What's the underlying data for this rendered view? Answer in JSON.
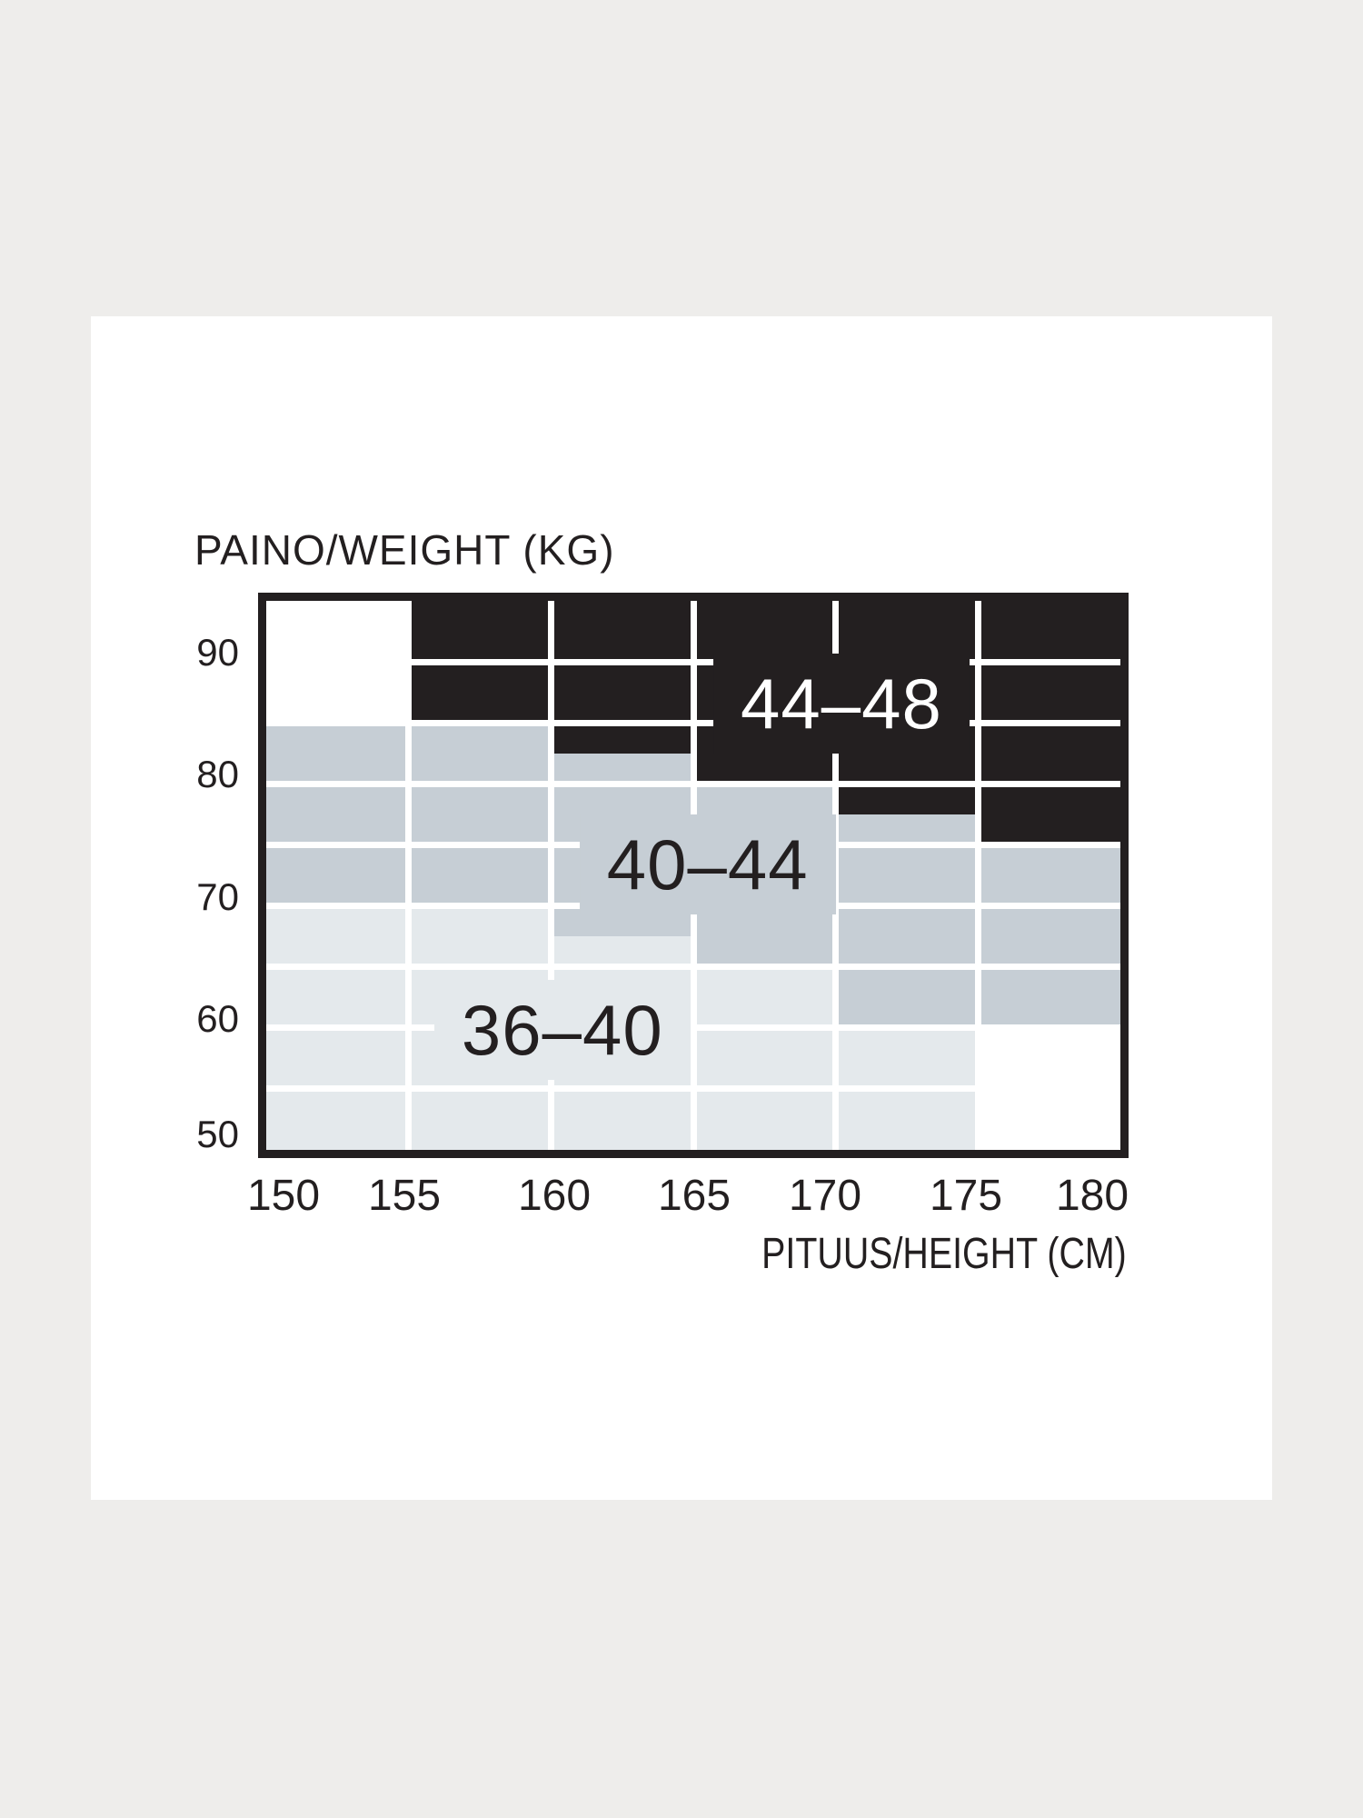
{
  "page": {
    "background_color": "#eeedeb",
    "card_color": "#ffffff"
  },
  "chart_data": {
    "type": "heatmap",
    "description": "Hosiery size chart: zones of size ranges over height (cm) and weight (kg)",
    "frame_color": "#231f20",
    "grid": {
      "show": true,
      "color": "#ffffff",
      "x_lines_cm": [
        155,
        160,
        165,
        170,
        175
      ],
      "y_lines_kg": [
        90,
        85,
        80,
        75,
        70,
        65,
        60,
        55
      ]
    },
    "x_axis": {
      "title": "PITUUS/HEIGHT (CM)",
      "ticks": [
        "150",
        "155",
        "160",
        "165",
        "170",
        "175",
        "180"
      ],
      "range": [
        150,
        180
      ]
    },
    "y_axis": {
      "title": "PAINO/WEIGHT (KG)",
      "ticks": [
        "90",
        "80",
        "70",
        "60",
        "50"
      ],
      "range": [
        50,
        95
      ]
    },
    "zones": [
      {
        "label": "36–40",
        "fill": "#e4e9ec",
        "text_color": "#231f20",
        "label_at": {
          "cm": 160.4,
          "kg": 59.8
        },
        "steps": [
          {
            "cm_from": 150,
            "cm_to": 155,
            "kg_from": 50,
            "kg_to": 70
          },
          {
            "cm_from": 155,
            "cm_to": 160,
            "kg_from": 50,
            "kg_to": 70
          },
          {
            "cm_from": 160,
            "cm_to": 165,
            "kg_from": 50,
            "kg_to": 67.5
          },
          {
            "cm_from": 165,
            "cm_to": 170,
            "kg_from": 50,
            "kg_to": 65
          },
          {
            "cm_from": 170,
            "cm_to": 175,
            "kg_from": 50,
            "kg_to": 60
          }
        ]
      },
      {
        "label": "40–44",
        "fill": "#c6ced5",
        "text_color": "#231f20",
        "label_at": {
          "cm": 165.5,
          "kg": 73.4
        },
        "steps": [
          {
            "cm_from": 150,
            "cm_to": 155,
            "kg_from": 70,
            "kg_to": 85
          },
          {
            "cm_from": 155,
            "cm_to": 160,
            "kg_from": 70,
            "kg_to": 85
          },
          {
            "cm_from": 160,
            "cm_to": 165,
            "kg_from": 67.5,
            "kg_to": 82.5
          },
          {
            "cm_from": 165,
            "cm_to": 170,
            "kg_from": 65,
            "kg_to": 80
          },
          {
            "cm_from": 170,
            "cm_to": 175,
            "kg_from": 60,
            "kg_to": 77.5
          },
          {
            "cm_from": 175,
            "cm_to": 180,
            "kg_from": 60,
            "kg_to": 75
          }
        ]
      },
      {
        "label": "44–48",
        "fill": "#231f20",
        "text_color": "#ffffff",
        "label_at": {
          "cm": 170.2,
          "kg": 86.6
        },
        "steps": [
          {
            "cm_from": 155,
            "cm_to": 160,
            "kg_from": 85,
            "kg_to": 95
          },
          {
            "cm_from": 160,
            "cm_to": 165,
            "kg_from": 82.5,
            "kg_to": 95
          },
          {
            "cm_from": 165,
            "cm_to": 170,
            "kg_from": 80,
            "kg_to": 95
          },
          {
            "cm_from": 170,
            "cm_to": 175,
            "kg_from": 77.5,
            "kg_to": 95
          },
          {
            "cm_from": 175,
            "cm_to": 180,
            "kg_from": 75,
            "kg_to": 95
          }
        ]
      }
    ]
  }
}
